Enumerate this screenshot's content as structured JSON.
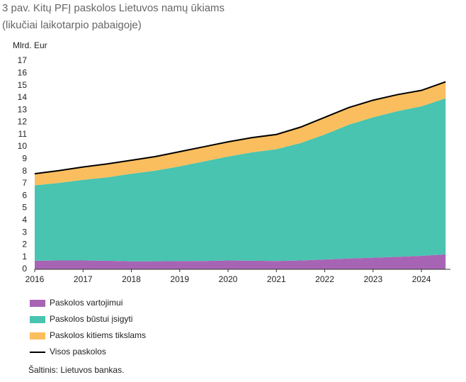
{
  "chart_data": {
    "type": "stacked-area",
    "title": "3 pav. Kitų PFĮ paskolos Lietuvos namų ūkiams",
    "subtitle": "(likučiai laikotarpio pabaigoje)",
    "y_label": "Mlrd. Eur",
    "source": "Šaltinis: Lietuvos bankas.",
    "x": [
      2016,
      2016.5,
      2017,
      2017.5,
      2018,
      2018.5,
      2019,
      2019.5,
      2020,
      2020.5,
      2021,
      2021.5,
      2022,
      2022.5,
      2023,
      2023.5,
      2024,
      2024.5
    ],
    "xlim": [
      2016,
      2024.6
    ],
    "xticks": [
      2016,
      2017,
      2018,
      2019,
      2020,
      2021,
      2022,
      2023,
      2024
    ],
    "ylim": [
      0,
      17
    ],
    "yticks": [
      0,
      1,
      2,
      3,
      4,
      5,
      6,
      7,
      8,
      9,
      10,
      11,
      12,
      13,
      14,
      15,
      16,
      17
    ],
    "series": [
      {
        "name": "Paskolos vartojimui",
        "color": "#a864b4",
        "kind": "area",
        "values": [
          0.7,
          0.72,
          0.72,
          0.7,
          0.65,
          0.66,
          0.67,
          0.68,
          0.72,
          0.7,
          0.68,
          0.72,
          0.8,
          0.88,
          0.95,
          1.02,
          1.1,
          1.22
        ]
      },
      {
        "name": "Paskolos būstui įsigyti",
        "color": "#48c4b0",
        "kind": "area",
        "values": [
          6.15,
          6.33,
          6.58,
          6.8,
          7.15,
          7.39,
          7.73,
          8.12,
          8.48,
          8.85,
          9.12,
          9.58,
          10.2,
          10.92,
          11.45,
          11.88,
          12.2,
          12.73
        ]
      },
      {
        "name": "Paskolos kitiems tikslams",
        "color": "#fbbe5e",
        "kind": "area",
        "values": [
          0.95,
          1.0,
          1.05,
          1.1,
          1.1,
          1.15,
          1.2,
          1.2,
          1.2,
          1.2,
          1.2,
          1.3,
          1.4,
          1.4,
          1.4,
          1.35,
          1.3,
          1.35
        ]
      },
      {
        "name": "Visos paskolos",
        "color": "#000000",
        "kind": "line",
        "values": [
          7.8,
          8.05,
          8.35,
          8.6,
          8.9,
          9.2,
          9.6,
          10.0,
          10.4,
          10.75,
          11.0,
          11.6,
          12.4,
          13.2,
          13.8,
          14.25,
          14.6,
          15.3
        ]
      }
    ]
  }
}
